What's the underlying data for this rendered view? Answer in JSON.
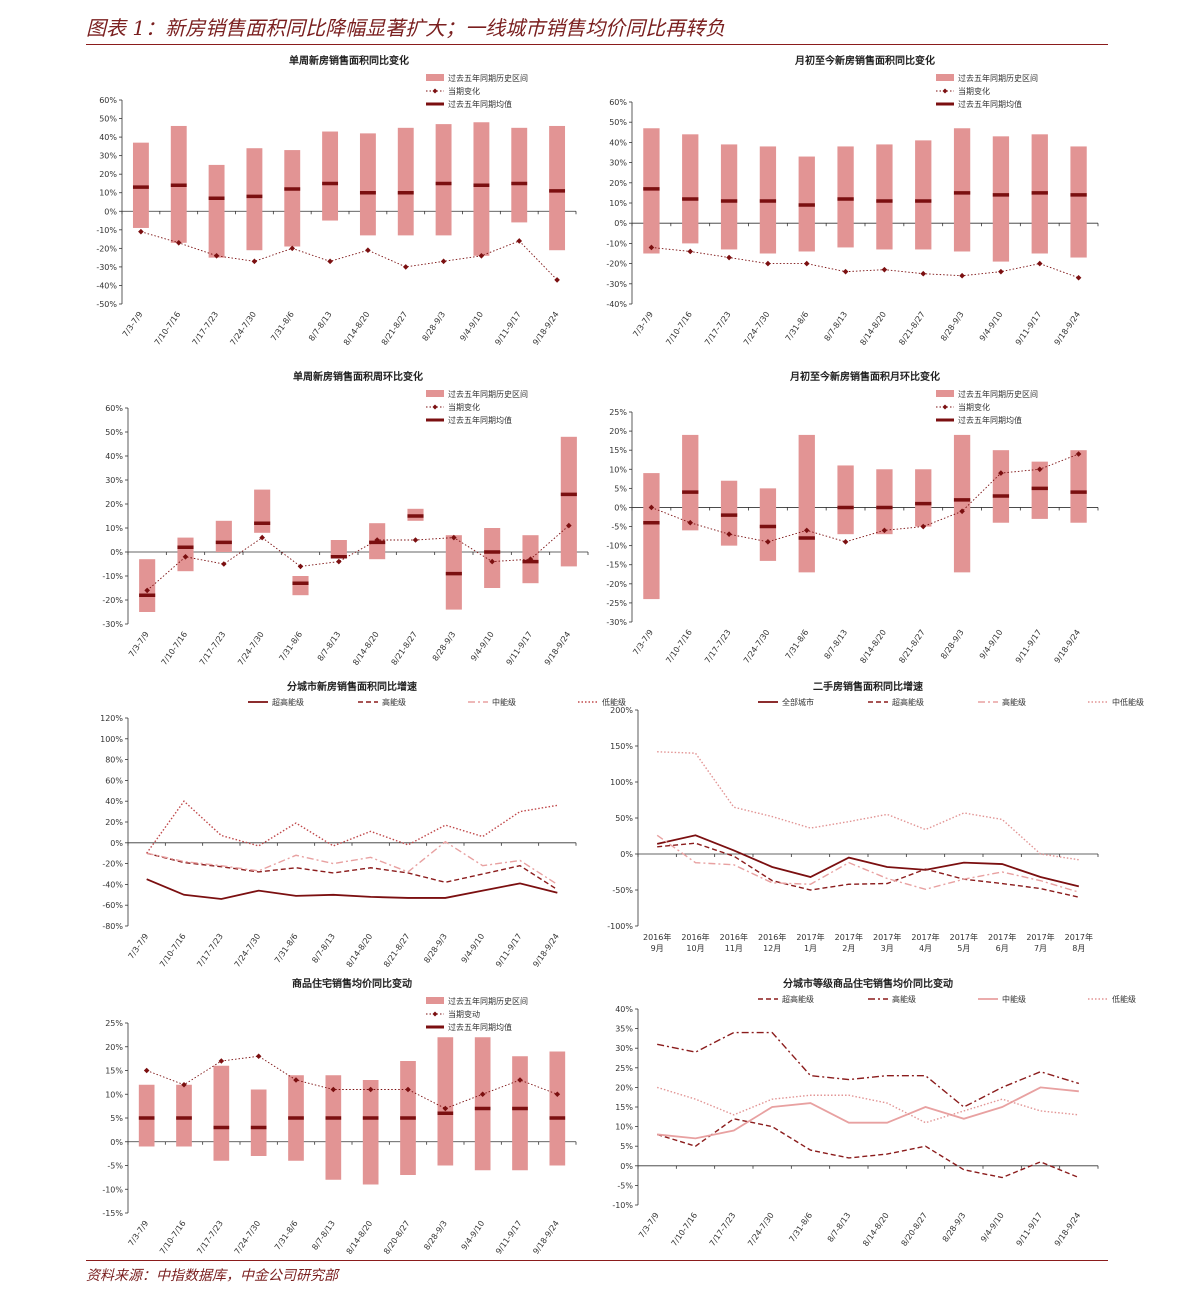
{
  "page": {
    "title": "图表 1：新房销售面积同比降幅显著扩大；一线城市销售均价同比再转负",
    "source": "资料来源：中指数据库，中金公司研究部"
  },
  "colors": {
    "band": "#e29494",
    "dark": "#7b0f10",
    "pink": "#e8a1a1",
    "axis": "#333333"
  },
  "chart_data": [
    {
      "id": "c1",
      "type": "range-band",
      "title": "单周新房销售面积同比变化",
      "legend": [
        "过去五年同期历史区间",
        "当期变化",
        "过去五年同期均值"
      ],
      "yunit": "%",
      "ylim": [
        -50,
        60
      ],
      "ystep": 10,
      "categories": [
        "7/3-7/9",
        "7/10-7/16",
        "7/17-7/23",
        "7/24-7/30",
        "7/31-8/6",
        "8/7-8/13",
        "8/14-8/20",
        "8/21-8/27",
        "8/28-9/3",
        "9/4-9/10",
        "9/11-9/17",
        "9/18-9/24"
      ],
      "low": [
        -9,
        -17,
        -25,
        -21,
        -19,
        -5,
        -13,
        -13,
        -13,
        -24,
        -6,
        -21
      ],
      "high": [
        37,
        46,
        25,
        34,
        33,
        43,
        42,
        45,
        47,
        48,
        45,
        46
      ],
      "mean": [
        13,
        14,
        7,
        8,
        12,
        15,
        10,
        10,
        15,
        14,
        15,
        11
      ],
      "current": [
        -11,
        -17,
        -24,
        -27,
        -20,
        -27,
        -21,
        -30,
        -27,
        -24,
        -16,
        -37
      ]
    },
    {
      "id": "c2",
      "type": "range-band",
      "title": "月初至今新房销售面积同比变化",
      "legend": [
        "过去五年同期历史区间",
        "当期变化",
        "过去五年同期均值"
      ],
      "yunit": "%",
      "ylim": [
        -40,
        60
      ],
      "ystep": 10,
      "categories": [
        "7/3-7/9",
        "7/10-7/16",
        "7/17-7/23",
        "7/24-7/30",
        "7/31-8/6",
        "8/7-8/13",
        "8/14-8/20",
        "8/21-8/27",
        "8/28-9/3",
        "9/4-9/10",
        "9/11-9/17",
        "9/18-9/24"
      ],
      "low": [
        -15,
        -10,
        -13,
        -15,
        -14,
        -12,
        -13,
        -13,
        -14,
        -19,
        -15,
        -17
      ],
      "high": [
        47,
        44,
        39,
        38,
        33,
        38,
        39,
        41,
        47,
        43,
        44,
        38
      ],
      "mean": [
        17,
        12,
        11,
        11,
        9,
        12,
        11,
        11,
        15,
        14,
        15,
        14
      ],
      "current": [
        -12,
        -14,
        -17,
        -20,
        -20,
        -24,
        -23,
        -25,
        -26,
        -24,
        -20,
        -27
      ]
    },
    {
      "id": "c3",
      "type": "range-band",
      "title": "单周新房销售面积周环比变化",
      "legend": [
        "过去五年同期历史区间",
        "当期变化",
        "过去五年同期均值"
      ],
      "yunit": "%",
      "ylim": [
        -30,
        60
      ],
      "ystep": 10,
      "categories": [
        "7/3-7/9",
        "7/10-7/16",
        "7/17-7/23",
        "7/24-7/30",
        "7/31-8/6",
        "8/7-8/13",
        "8/14-8/20",
        "8/21-8/27",
        "8/28-9/3",
        "9/4-9/10",
        "9/11-9/17",
        "9/18-9/24"
      ],
      "low": [
        -25,
        -8,
        0,
        8,
        -18,
        -2,
        -3,
        13,
        -24,
        -15,
        -13,
        -6
      ],
      "high": [
        -3,
        6,
        13,
        26,
        -10,
        5,
        12,
        18,
        7,
        10,
        7,
        48
      ],
      "mean": [
        -18,
        2,
        4,
        12,
        -13,
        -2,
        4,
        15,
        -9,
        0,
        -4,
        24
      ],
      "current": [
        -16,
        -2,
        -5,
        6,
        -6,
        -4,
        5,
        5,
        6,
        -4,
        -3,
        11
      ]
    },
    {
      "id": "c4",
      "type": "range-band",
      "title": "月初至今新房销售面积月环比变化",
      "legend": [
        "过去五年同期历史区间",
        "当期变化",
        "过去五年同期均值"
      ],
      "yunit": "%",
      "ylim": [
        -30,
        25
      ],
      "ystep": 5,
      "categories": [
        "7/3-7/9",
        "7/10-7/16",
        "7/17-7/23",
        "7/24-7/30",
        "7/31-8/6",
        "8/7-8/13",
        "8/14-8/20",
        "8/21-8/27",
        "8/28-9/3",
        "9/4-9/10",
        "9/11-9/17",
        "9/18-9/24"
      ],
      "low": [
        -24,
        -6,
        -10,
        -14,
        -17,
        -7,
        -7,
        -5,
        -17,
        -4,
        -3,
        -4
      ],
      "high": [
        9,
        19,
        7,
        5,
        19,
        11,
        10,
        10,
        19,
        15,
        12,
        15
      ],
      "mean": [
        -4,
        4,
        -2,
        -5,
        -8,
        0,
        0,
        1,
        2,
        3,
        5,
        4
      ],
      "current": [
        0,
        -4,
        -7,
        -9,
        -6,
        -9,
        -6,
        -5,
        -1,
        9,
        10,
        14
      ]
    },
    {
      "id": "c5",
      "type": "line",
      "title": "分城市新房销售面积同比增速",
      "yunit": "%",
      "ylim": [
        -80,
        120
      ],
      "ystep": 20,
      "categories": [
        "7/3-7/9",
        "7/10-7/16",
        "7/17-7/23",
        "7/24-7/30",
        "7/31-8/6",
        "8/7-8/13",
        "8/14-8/20",
        "8/21-8/27",
        "8/28-9/3",
        "9/4-9/10",
        "9/11-9/17",
        "9/18-9/24"
      ],
      "series": [
        {
          "name": "超高能级",
          "style": "solid",
          "color": "#7b0f10",
          "values": [
            -35,
            -50,
            -54,
            -46,
            -51,
            -50,
            -52,
            -53,
            -53,
            -46,
            -39,
            -48
          ]
        },
        {
          "name": "高能级",
          "style": "dash",
          "color": "#8b1c1c",
          "values": [
            -10,
            -19,
            -23,
            -28,
            -24,
            -29,
            -24,
            -29,
            -38,
            -30,
            -22,
            -45
          ]
        },
        {
          "name": "中能级",
          "style": "dashdot",
          "color": "#e8a1a1",
          "values": [
            -10,
            -18,
            -22,
            -27,
            -12,
            -20,
            -14,
            -28,
            1,
            -22,
            -17,
            -40
          ]
        },
        {
          "name": "低能级",
          "style": "dot",
          "color": "#c0484a",
          "values": [
            -10,
            40,
            7,
            -3,
            19,
            -3,
            11,
            -2,
            17,
            6,
            30,
            36
          ]
        }
      ]
    },
    {
      "id": "c6",
      "type": "line",
      "title": "二手房销售面积同比增速",
      "yunit": "%",
      "ylim": [
        -100,
        200
      ],
      "ystep": 50,
      "categories": [
        "2016年9月",
        "2016年10月",
        "2016年11月",
        "2016年12月",
        "2017年1月",
        "2017年2月",
        "2017年3月",
        "2017年4月",
        "2017年5月",
        "2017年6月",
        "2017年7月",
        "2017年8月"
      ],
      "series": [
        {
          "name": "全部城市",
          "style": "solid",
          "color": "#7b0f10",
          "values": [
            14,
            26,
            5,
            -18,
            -32,
            -5,
            -18,
            -22,
            -12,
            -14,
            -32,
            -45
          ]
        },
        {
          "name": "超高能级",
          "style": "dash",
          "color": "#8b1c1c",
          "values": [
            10,
            15,
            -3,
            -37,
            -50,
            -42,
            -41,
            -21,
            -35,
            -41,
            -48,
            -60
          ]
        },
        {
          "name": "高能级",
          "style": "dashdot",
          "color": "#e8a1a1",
          "values": [
            26,
            -12,
            -15,
            -40,
            -42,
            -12,
            -34,
            -49,
            -35,
            -25,
            -37,
            -53
          ]
        },
        {
          "name": "中低能级",
          "style": "dot",
          "color": "#e29494",
          "values": [
            142,
            140,
            65,
            52,
            36,
            45,
            55,
            34,
            57,
            48,
            0,
            -8
          ]
        }
      ]
    },
    {
      "id": "c7",
      "type": "range-band",
      "title": "商品住宅销售均价同比变动",
      "legend": [
        "过去五年同期历史区间",
        "当期变动",
        "过去五年同期均值"
      ],
      "yunit": "%",
      "ylim": [
        -15,
        25
      ],
      "ystep": 5,
      "categories": [
        "7/3-7/9",
        "7/10-7/16",
        "7/17-7/23",
        "7/24-7/30",
        "7/31-8/6",
        "8/7-8/13",
        "8/14-8/20",
        "8/20-8/27",
        "8/28-9/3",
        "9/4-9/10",
        "9/11-9/17",
        "9/18-9/24"
      ],
      "low": [
        -1,
        -1,
        -4,
        -3,
        -4,
        -8,
        -9,
        -7,
        -5,
        -6,
        -6,
        -5
      ],
      "high": [
        12,
        12,
        16,
        11,
        14,
        14,
        13,
        17,
        22,
        22,
        18,
        19
      ],
      "mean": [
        5,
        5,
        3,
        3,
        5,
        5,
        5,
        5,
        6,
        7,
        7,
        5
      ],
      "current": [
        15,
        12,
        17,
        18,
        13,
        11,
        11,
        11,
        7,
        10,
        13,
        10
      ]
    },
    {
      "id": "c8",
      "type": "line",
      "title": "分城市等级商品住宅销售均价同比变动",
      "yunit": "%",
      "ylim": [
        -10,
        40
      ],
      "ystep": 5,
      "categories": [
        "7/3-7/9",
        "7/10-7/16",
        "7/17-7/23",
        "7/24-7/30",
        "7/31-8/6",
        "8/7-8/13",
        "8/14-8/20",
        "8/20-8/27",
        "8/28-9/3",
        "9/4-9/10",
        "9/11-9/17",
        "9/18-9/24"
      ],
      "series": [
        {
          "name": "超高能级",
          "style": "dash",
          "color": "#8b1c1c",
          "values": [
            8,
            5,
            12,
            10,
            4,
            2,
            3,
            5,
            -1,
            -3,
            1,
            -3
          ]
        },
        {
          "name": "高能级",
          "style": "dashdot",
          "color": "#8b1c1c",
          "values": [
            31,
            29,
            34,
            34,
            23,
            22,
            23,
            23,
            15,
            20,
            24,
            21
          ]
        },
        {
          "name": "中能级",
          "style": "solid",
          "color": "#e8a1a1",
          "values": [
            8,
            7,
            9,
            15,
            16,
            11,
            11,
            15,
            12,
            15,
            20,
            19
          ]
        },
        {
          "name": "低能级",
          "style": "dot",
          "color": "#e29494",
          "values": [
            20,
            17,
            13,
            17,
            18,
            18,
            16,
            11,
            14,
            17,
            14,
            13
          ]
        }
      ]
    }
  ]
}
